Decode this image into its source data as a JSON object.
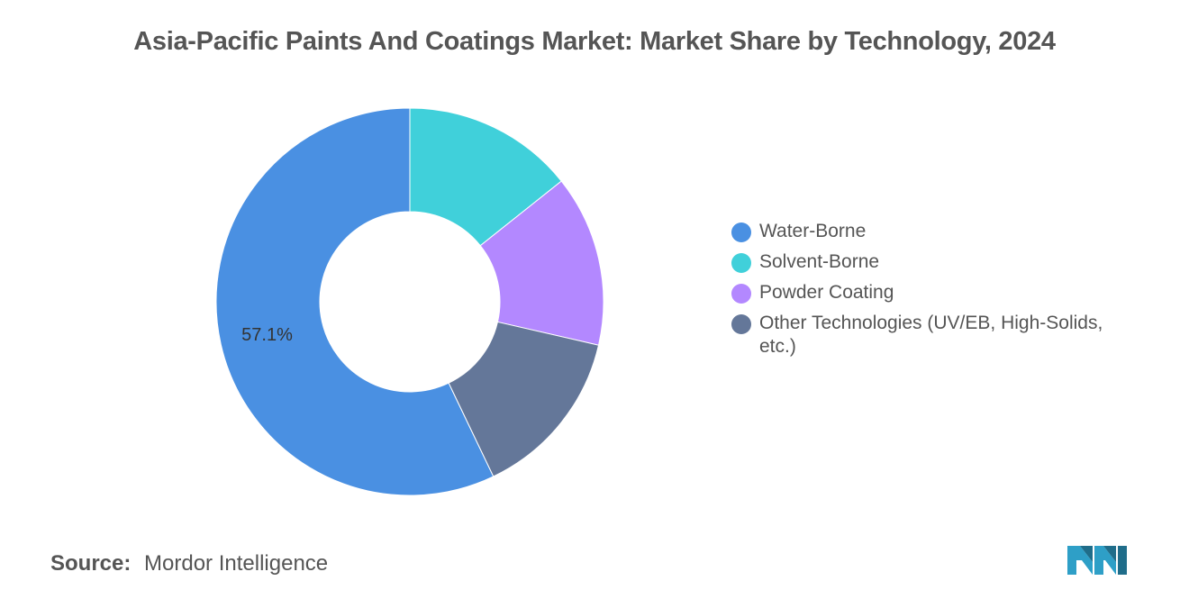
{
  "chart_data": {
    "type": "pie",
    "title": "Asia-Pacific Paints And Coatings Market: Market Share by Technology, 2024",
    "categories": [
      "Water-Borne",
      "Solvent-Borne",
      "Powder Coating",
      "Other Technologies (UV/EB, High-Solids, etc.)"
    ],
    "values": [
      57.1,
      14.3,
      14.3,
      14.3
    ],
    "colors": [
      "#4a90e2",
      "#40d0da",
      "#b388ff",
      "#647799"
    ],
    "data_labels": [
      "57.1%",
      "",
      "",
      ""
    ],
    "legend_position": "right",
    "grid": false
  },
  "source": {
    "label": "Source:",
    "value": "Mordor Intelligence"
  },
  "logo": {
    "icon": "mordor-intelligence-logo-icon",
    "colors": [
      "#2e9fc7",
      "#1f6d8a"
    ]
  }
}
